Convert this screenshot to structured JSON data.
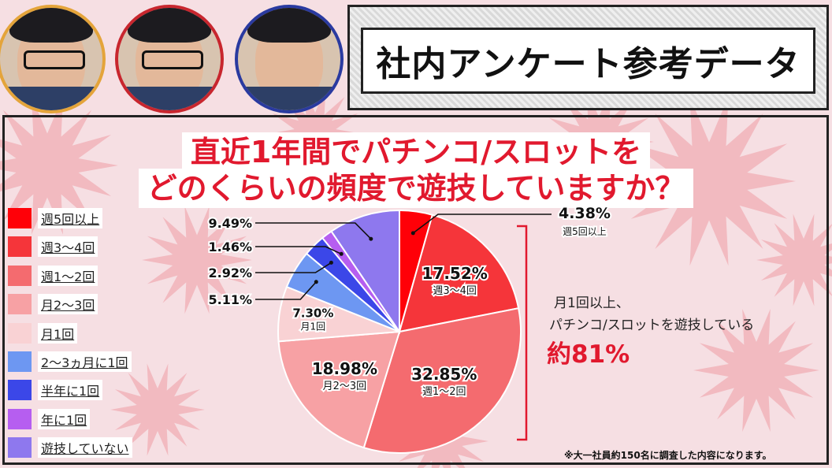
{
  "hosts": [
    {
      "name": "host-avatar-left"
    },
    {
      "name": "host-avatar-center"
    },
    {
      "name": "host-avatar-right"
    }
  ],
  "banner": {
    "title": "社内アンケート参考データ"
  },
  "question": {
    "line1": "直近1年間でパチンコ/スロットを",
    "line2": "どのくらいの頻度で遊技していますか？"
  },
  "legend": [
    {
      "label": "週5回以上",
      "color": "#ff0008"
    },
    {
      "label": "週3〜4回",
      "color": "#f5353a"
    },
    {
      "label": "週1〜2回",
      "color": "#f46b6f"
    },
    {
      "label": "月2〜3回",
      "color": "#f7a1a4"
    },
    {
      "label": "月1回",
      "color": "#f9d2d4"
    },
    {
      "label": "2〜3ヵ月に1回",
      "color": "#6d97f2"
    },
    {
      "label": "半年に1回",
      "color": "#3b47e8"
    },
    {
      "label": "年に1回",
      "color": "#b65ef0"
    },
    {
      "label": "遊技していない",
      "color": "#8e78ee"
    }
  ],
  "chart_data": {
    "type": "pie",
    "title": "直近1年間でパチンコ/スロットをどのくらいの頻度で遊技していますか？",
    "slices": [
      {
        "label": "週5回以上",
        "value": 4.38,
        "text": "4.38%",
        "sublabel": "週5回以上"
      },
      {
        "label": "週3〜4回",
        "value": 17.52,
        "text": "17.52%",
        "sublabel": "週3〜4回"
      },
      {
        "label": "週1〜2回",
        "value": 32.85,
        "text": "32.85%",
        "sublabel": "週1〜2回"
      },
      {
        "label": "月2〜3回",
        "value": 18.98,
        "text": "18.98%",
        "sublabel": "月2〜3回"
      },
      {
        "label": "月1回",
        "value": 7.3,
        "text": "7.30%",
        "sublabel": "月1回"
      },
      {
        "label": "2〜3ヵ月に1回",
        "value": 5.11,
        "text": "5.11%",
        "sublabel": ""
      },
      {
        "label": "半年に1回",
        "value": 2.92,
        "text": "2.92%",
        "sublabel": ""
      },
      {
        "label": "年に1回",
        "value": 1.46,
        "text": "1.46%",
        "sublabel": ""
      },
      {
        "label": "遊技していない",
        "value": 9.49,
        "text": "9.49%",
        "sublabel": ""
      }
    ],
    "start": "12 o'clock",
    "direction": "clockwise"
  },
  "summary": {
    "line1": "月1回以上、",
    "line2": "パチンコ/スロットを遊技している",
    "highlight": "約81%"
  },
  "footnote": "※大一社員約150名に調査した内容になります。"
}
